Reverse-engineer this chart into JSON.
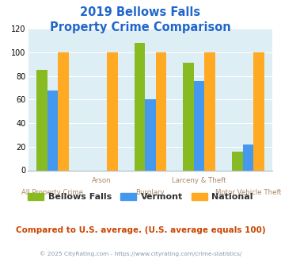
{
  "title_line1": "2019 Bellows Falls",
  "title_line2": "Property Crime Comparison",
  "categories": [
    "All Property Crime",
    "Arson",
    "Burglary",
    "Larceny & Theft",
    "Motor Vehicle Theft"
  ],
  "series": {
    "Bellows Falls": [
      85,
      null,
      108,
      91,
      16
    ],
    "Vermont": [
      68,
      null,
      60,
      76,
      22
    ],
    "National": [
      100,
      100,
      100,
      100,
      100
    ]
  },
  "colors": {
    "Bellows Falls": "#88bb22",
    "Vermont": "#4499ee",
    "National": "#ffaa22"
  },
  "ylim": [
    0,
    120
  ],
  "yticks": [
    0,
    20,
    40,
    60,
    80,
    100,
    120
  ],
  "title_color": "#2266cc",
  "xlabel_color": "#aa8866",
  "plot_bg_color": "#ddeef5",
  "footer_text": "Compared to U.S. average. (U.S. average equals 100)",
  "footer_color": "#cc4400",
  "copyright_text": "© 2025 CityRating.com - https://www.cityrating.com/crime-statistics/",
  "copyright_color": "#8899aa",
  "copyright_link_color": "#4488cc",
  "legend_labels": [
    "Bellows Falls",
    "Vermont",
    "National"
  ],
  "bar_width": 0.22
}
